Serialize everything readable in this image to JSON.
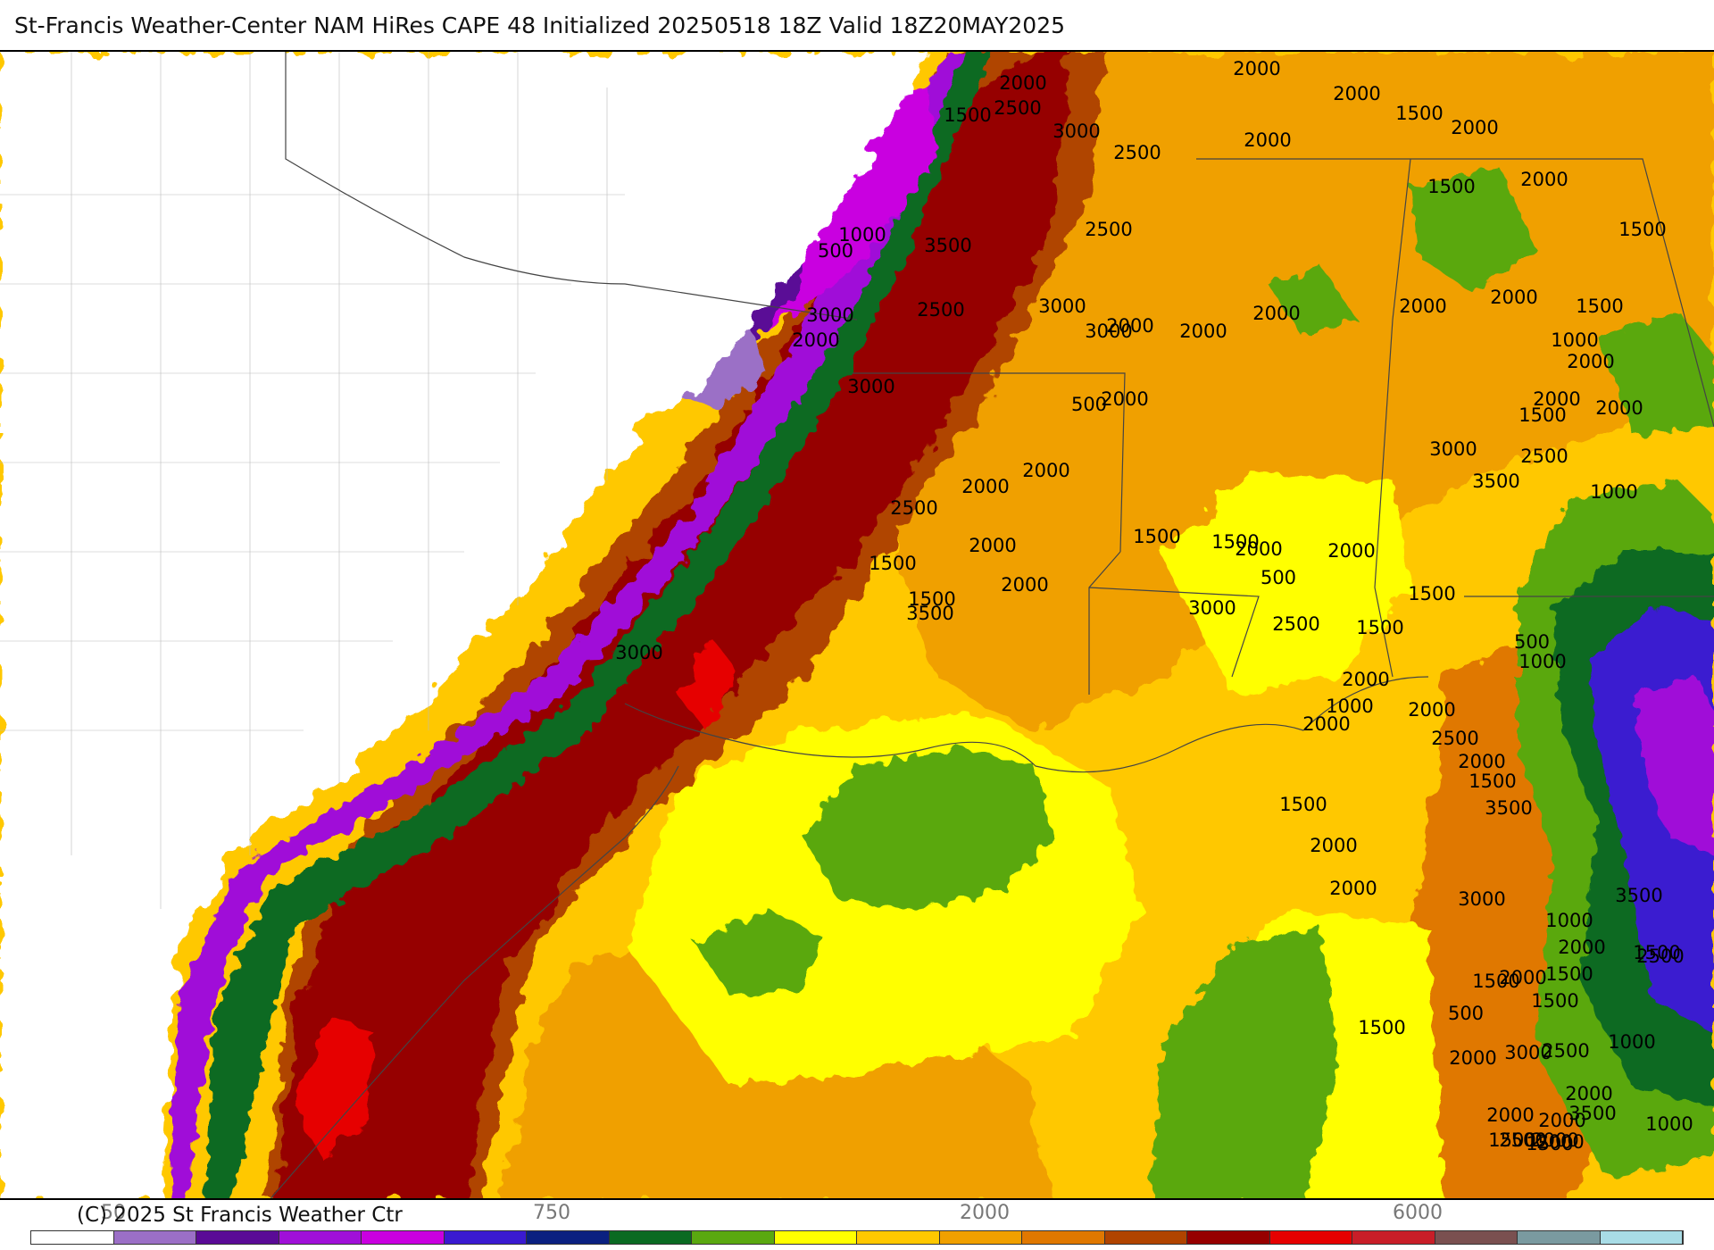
{
  "title": "St-Francis Weather-Center NAM HiRes CAPE  48 Initialized 20250518 18Z Valid 18Z20MAY2025",
  "copyright": "(C) 2025 St Francis Weather Ctr",
  "colorbar": {
    "colors": [
      "#ffffff",
      "#9b6fc6",
      "#5a0a96",
      "#a010d8",
      "#c900e0",
      "#3a1ad0",
      "#0a2080",
      "#0a6a22",
      "#5aa810",
      "#ffff00",
      "#ffc800",
      "#f0a000",
      "#e07800",
      "#b04400",
      "#960000",
      "#e60000",
      "#c81e28",
      "#7a5050",
      "#7a9aa0",
      "#a8dce6"
    ],
    "tick_labels": [
      {
        "key": "t1",
        "text": "50"
      },
      {
        "key": "t2",
        "text": "750"
      },
      {
        "key": "t3",
        "text": "2000"
      },
      {
        "key": "t4",
        "text": "6000"
      }
    ]
  },
  "contour_labels": [
    "2000",
    "2500",
    "1500",
    "3000",
    "2500",
    "2000",
    "2000",
    "1500",
    "2000",
    "2000",
    "2000",
    "1500",
    "1500",
    "1000",
    "500",
    "3500",
    "2500",
    "3000",
    "2000",
    "2500",
    "2000",
    "3000",
    "2000",
    "3000",
    "2000",
    "2000",
    "2000",
    "2000",
    "1500",
    "1000",
    "2000",
    "2000",
    "2000",
    "3000",
    "1500",
    "3000",
    "3500",
    "500",
    "2500",
    "1000",
    "2500",
    "2000",
    "2000",
    "2000",
    "2000",
    "1500",
    "1500",
    "3500",
    "2000",
    "1500",
    "1500",
    "2000",
    "500",
    "3000",
    "2500",
    "1500",
    "1500",
    "2000",
    "1000",
    "2000",
    "500",
    "1000",
    "3000",
    "2000",
    "2500",
    "2000",
    "1500",
    "3500",
    "1500",
    "2000",
    "2000",
    "3000",
    "3500",
    "1000",
    "2000",
    "1500",
    "1500",
    "2500",
    "1500",
    "1500",
    "2000",
    "500",
    "1500",
    "1000",
    "3000",
    "2000",
    "2500",
    "2000",
    "3500",
    "2000",
    "1500",
    "2000",
    "1000",
    "1500",
    "2500",
    "2000",
    "2000"
  ],
  "legend": {
    "ticks": [
      50,
      750,
      2000,
      6000
    ]
  }
}
